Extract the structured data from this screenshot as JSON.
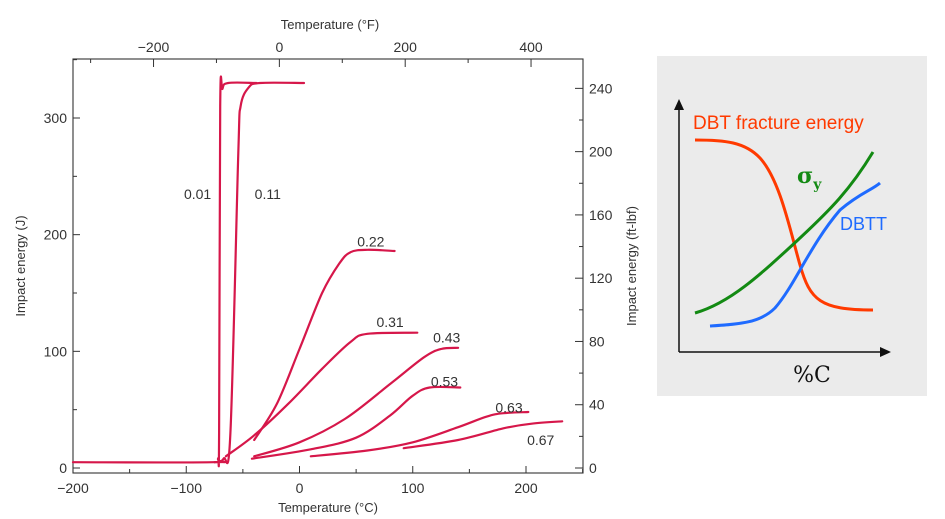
{
  "chart_data": [
    {
      "type": "line",
      "title": "",
      "xlabel": "Temperature (°C)",
      "xlabel_top": "Temperature (°F)",
      "ylabel": "Impact energy (J)",
      "ylabel_right": "Impact energy (ft-lbf)",
      "xlim": [
        -200,
        250
      ],
      "ylim": [
        0,
        350
      ],
      "xlim_top_F": [
        -328,
        482
      ],
      "ylim_right_ftlb": [
        0,
        258
      ],
      "x_ticks": [
        -200,
        -100,
        0,
        100,
        200
      ],
      "y_ticks": [
        0,
        100,
        200,
        300
      ],
      "x_ticks_top": [
        -200,
        0,
        200,
        400
      ],
      "y_ticks_right": [
        0,
        40,
        80,
        120,
        160,
        200,
        240
      ],
      "x_tick_labels": [
        "−200",
        "−100",
        "0",
        "100",
        "200"
      ],
      "y_tick_labels": [
        "0",
        "100",
        "200",
        "300"
      ],
      "x_tick_labels_top": [
        "−200",
        "0",
        "200",
        "400"
      ],
      "y_tick_labels_right": [
        "0",
        "40",
        "80",
        "120",
        "160",
        "200",
        "240"
      ],
      "grid": false,
      "legend": "none",
      "series_color": "#d6174a",
      "series": [
        {
          "name": "0.01",
          "label_at": [
            -90,
            235
          ],
          "points": [
            [
              -200,
              5
            ],
            [
              -76,
              5
            ],
            [
              -72,
              8
            ],
            [
              -71,
              30
            ],
            [
              -70,
              310
            ],
            [
              -68,
              325
            ],
            [
              -63,
              330
            ],
            [
              -38,
              330
            ]
          ]
        },
        {
          "name": "0.11",
          "label_at": [
            -28,
            235
          ],
          "points": [
            [
              -75,
              5
            ],
            [
              -67,
              8
            ],
            [
              -61,
              30
            ],
            [
              -54,
              270
            ],
            [
              -52,
              310
            ],
            [
              -45,
              326
            ],
            [
              -35,
              330
            ],
            [
              4,
              330
            ]
          ]
        },
        {
          "name": "0.22",
          "label_at": [
            63,
            194
          ],
          "points": [
            [
              -40,
              24
            ],
            [
              -20,
              55
            ],
            [
              0,
              102
            ],
            [
              20,
              150
            ],
            [
              35,
              175
            ],
            [
              45,
              185
            ],
            [
              60,
              187
            ],
            [
              84,
              186
            ]
          ]
        },
        {
          "name": "0.31",
          "label_at": [
            80,
            125
          ],
          "points": [
            [
              -65,
              10
            ],
            [
              -40,
              28
            ],
            [
              -10,
              55
            ],
            [
              20,
              85
            ],
            [
              45,
              108
            ],
            [
              60,
              115
            ],
            [
              104,
              116
            ]
          ]
        },
        {
          "name": "0.43",
          "label_at": [
            130,
            112
          ],
          "points": [
            [
              -40,
              10
            ],
            [
              0,
              22
            ],
            [
              40,
              42
            ],
            [
              80,
              72
            ],
            [
              110,
              95
            ],
            [
              125,
              102
            ],
            [
              140,
              103
            ]
          ]
        },
        {
          "name": "0.53",
          "label_at": [
            128,
            74
          ],
          "points": [
            [
              -42,
              8
            ],
            [
              10,
              16
            ],
            [
              50,
              26
            ],
            [
              80,
              45
            ],
            [
              100,
              62
            ],
            [
              115,
              69
            ],
            [
              142,
              69
            ]
          ]
        },
        {
          "name": "0.63",
          "label_at": [
            185,
            52
          ],
          "points": [
            [
              10,
              10
            ],
            [
              60,
              15
            ],
            [
              100,
              22
            ],
            [
              140,
              35
            ],
            [
              165,
              44
            ],
            [
              180,
              47
            ],
            [
              202,
              48
            ]
          ]
        },
        {
          "name": "0.67",
          "label_at": [
            213,
            24
          ],
          "points": [
            [
              92,
              17
            ],
            [
              140,
              24
            ],
            [
              180,
              34
            ],
            [
              205,
              38
            ],
            [
              232,
              40
            ]
          ]
        }
      ]
    },
    {
      "type": "line",
      "title": "",
      "xlabel": "%C",
      "ylabel": "",
      "axes": "unlabeled",
      "background": "#ebebeb",
      "grid": false,
      "legend": "inline labels",
      "series": [
        {
          "name": "DBT fracture energy",
          "color": "#ff3a00",
          "trend": "decreasing (sigmoid)"
        },
        {
          "name": "σy",
          "subscript": "y",
          "symbol": "σ",
          "color": "#138a13",
          "trend": "increasing"
        },
        {
          "name": "DBTT",
          "color": "#1f6bff",
          "trend": "increasing (sigmoid)"
        }
      ]
    }
  ]
}
